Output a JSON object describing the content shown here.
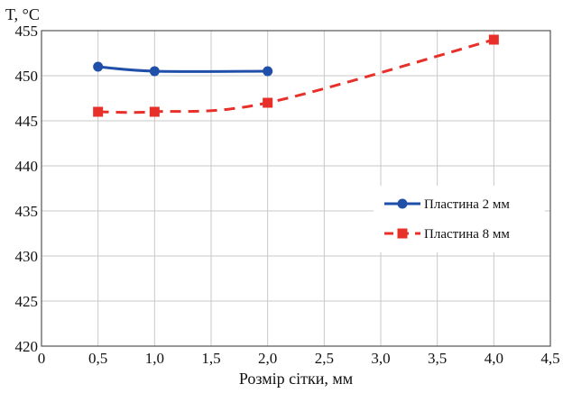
{
  "chart_data": {
    "type": "line",
    "ylabel": "T, °C",
    "xlabel": "Розмір сітки, мм",
    "xlim": [
      0,
      4.5
    ],
    "ylim": [
      420,
      455
    ],
    "x_ticks": [
      "0",
      "0,5",
      "1,0",
      "1,5",
      "2,0",
      "2,5",
      "3,0",
      "3,5",
      "4,0",
      "4,5"
    ],
    "x_tick_values": [
      0,
      0.5,
      1.0,
      1.5,
      2.0,
      2.5,
      3.0,
      3.5,
      4.0,
      4.5
    ],
    "y_ticks": [
      "420",
      "425",
      "430",
      "435",
      "440",
      "445",
      "450",
      "455"
    ],
    "y_tick_values": [
      420,
      425,
      430,
      435,
      440,
      445,
      450,
      455
    ],
    "grid": "vertical and horizontal",
    "legend_position": "right",
    "series": [
      {
        "name": "Пластина 2 мм",
        "color": "#1f4fa8",
        "marker": "circle",
        "line_style": "solid",
        "x": [
          0.5,
          1.0,
          2.0
        ],
        "y": [
          451,
          450.5,
          450.5
        ]
      },
      {
        "name": "Пластина 8 мм",
        "color": "#e8302a",
        "marker": "square",
        "line_style": "dashed",
        "x": [
          0.5,
          1.0,
          2.0,
          4.0
        ],
        "y": [
          446,
          446,
          447,
          454
        ]
      }
    ]
  }
}
